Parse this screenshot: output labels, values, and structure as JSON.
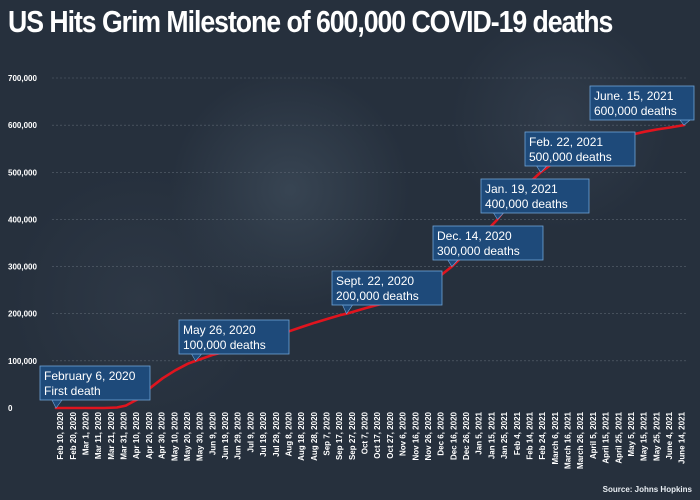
{
  "title": "US Hits Grim Milestone of 600,000 COVID-19 deaths",
  "source": "Source: Johns Hopkins",
  "colors": {
    "background": "#26303d",
    "line": "#e0141e",
    "callout_bg": "#1e4a7a",
    "callout_border": "#6fa3d8",
    "text": "#ffffff",
    "grid": "#5a6470"
  },
  "chart_data": {
    "type": "line",
    "title": "US Hits Grim Milestone of 600,000 COVID-19 deaths",
    "xlabel": "",
    "ylabel": "",
    "ylim": [
      0,
      700000
    ],
    "yticks": [
      0,
      100000,
      200000,
      300000,
      400000,
      500000,
      600000,
      700000
    ],
    "ytick_labels": [
      "0",
      "100,000",
      "200,000",
      "300,000",
      "400,000",
      "500,000",
      "600,000",
      "700,000"
    ],
    "grid": true,
    "x_tick_labels": [
      "Feb 10, 2020",
      "Feb 20, 2020",
      "Mar 1, 2020",
      "Mar 11, 2020",
      "Mar 21, 2020",
      "Mar 31, 2020",
      "Apr 10, 2020",
      "Apr 20, 2020",
      "Apr 30, 2020",
      "May 10, 2020",
      "May 20, 2020",
      "May 30, 2020",
      "Jun 9, 2020",
      "Jun 19, 2020",
      "Jun 29, 2020",
      "Jul 9, 2020",
      "Jul 19, 2020",
      "Jul 29, 2020",
      "Aug 8, 2020",
      "Aug 18, 2020",
      "Aug 28, 2020",
      "Sep 7, 2020",
      "Sep 17, 2020",
      "Sep 27, 2020",
      "Oct 7, 2020",
      "Oct 17, 2020",
      "Oct 27, 2020",
      "Nov 6, 2020",
      "Nov 16, 2020",
      "Nov 26, 2020",
      "Dec 6, 2020",
      "Dec 16, 2020",
      "Dec 26, 2020",
      "Jan 5, 2021",
      "Jan 15, 2021",
      "Jan 25, 2021",
      "Feb 4, 2021",
      "Feb 14, 2021",
      "Feb 24, 2021",
      "March 6, 2021",
      "March 16, 2021",
      "March 26, 2021",
      "April 5, 2021",
      "April 15, 2021",
      "April 25, 2021",
      "May 5, 2021",
      "May 15, 2021",
      "May 25, 2021",
      "June 4, 2021",
      "June 14, 2021"
    ],
    "series": [
      {
        "points": [
          [
            "2020-02-06",
            0
          ],
          [
            "2020-03-01",
            10
          ],
          [
            "2020-03-15",
            80
          ],
          [
            "2020-03-25",
            1000
          ],
          [
            "2020-04-01",
            5000
          ],
          [
            "2020-04-10",
            18000
          ],
          [
            "2020-04-20",
            42000
          ],
          [
            "2020-04-30",
            63000
          ],
          [
            "2020-05-10",
            80000
          ],
          [
            "2020-05-20",
            94000
          ],
          [
            "2020-05-26",
            100000
          ],
          [
            "2020-06-09",
            113000
          ],
          [
            "2020-06-19",
            120000
          ],
          [
            "2020-06-29",
            127000
          ],
          [
            "2020-07-09",
            133000
          ],
          [
            "2020-07-19",
            141000
          ],
          [
            "2020-07-29",
            152000
          ],
          [
            "2020-08-08",
            163000
          ],
          [
            "2020-08-18",
            172000
          ],
          [
            "2020-08-28",
            181000
          ],
          [
            "2020-09-07",
            189000
          ],
          [
            "2020-09-17",
            197000
          ],
          [
            "2020-09-22",
            200000
          ],
          [
            "2020-10-07",
            212000
          ],
          [
            "2020-10-17",
            219000
          ],
          [
            "2020-10-27",
            226000
          ],
          [
            "2020-11-06",
            236000
          ],
          [
            "2020-11-16",
            248000
          ],
          [
            "2020-11-26",
            264000
          ],
          [
            "2020-12-06",
            283000
          ],
          [
            "2020-12-14",
            300000
          ],
          [
            "2020-12-26",
            331000
          ],
          [
            "2021-01-05",
            360000
          ],
          [
            "2021-01-19",
            400000
          ],
          [
            "2021-01-25",
            422000
          ],
          [
            "2021-02-04",
            455000
          ],
          [
            "2021-02-14",
            480000
          ],
          [
            "2021-02-22",
            500000
          ],
          [
            "2021-03-06",
            524000
          ],
          [
            "2021-03-16",
            538000
          ],
          [
            "2021-03-26",
            548000
          ],
          [
            "2021-04-05",
            556000
          ],
          [
            "2021-04-15",
            564000
          ],
          [
            "2021-04-25",
            572000
          ],
          [
            "2021-05-05",
            580000
          ],
          [
            "2021-05-15",
            586000
          ],
          [
            "2021-05-25",
            591000
          ],
          [
            "2021-06-04",
            595000
          ],
          [
            "2021-06-15",
            600000
          ]
        ]
      }
    ],
    "annotations": [
      {
        "line1": "February 6, 2020",
        "line2": "First death",
        "date": "2020-02-06",
        "value": 0
      },
      {
        "line1": "May 26, 2020",
        "line2": "100,000 deaths",
        "date": "2020-05-26",
        "value": 100000
      },
      {
        "line1": "Sept. 22, 2020",
        "line2": "200,000 deaths",
        "date": "2020-09-22",
        "value": 200000
      },
      {
        "line1": "Dec. 14, 2020",
        "line2": "300,000 deaths",
        "date": "2020-12-14",
        "value": 300000
      },
      {
        "line1": "Jan. 19, 2021",
        "line2": "400,000 deaths",
        "date": "2021-01-19",
        "value": 400000
      },
      {
        "line1": "Feb. 22, 2021",
        "line2": "500,000 deaths",
        "date": "2021-02-22",
        "value": 500000
      },
      {
        "line1": "June. 15, 2021",
        "line2": "600,000 deaths",
        "date": "2021-06-15",
        "value": 600000
      }
    ]
  }
}
